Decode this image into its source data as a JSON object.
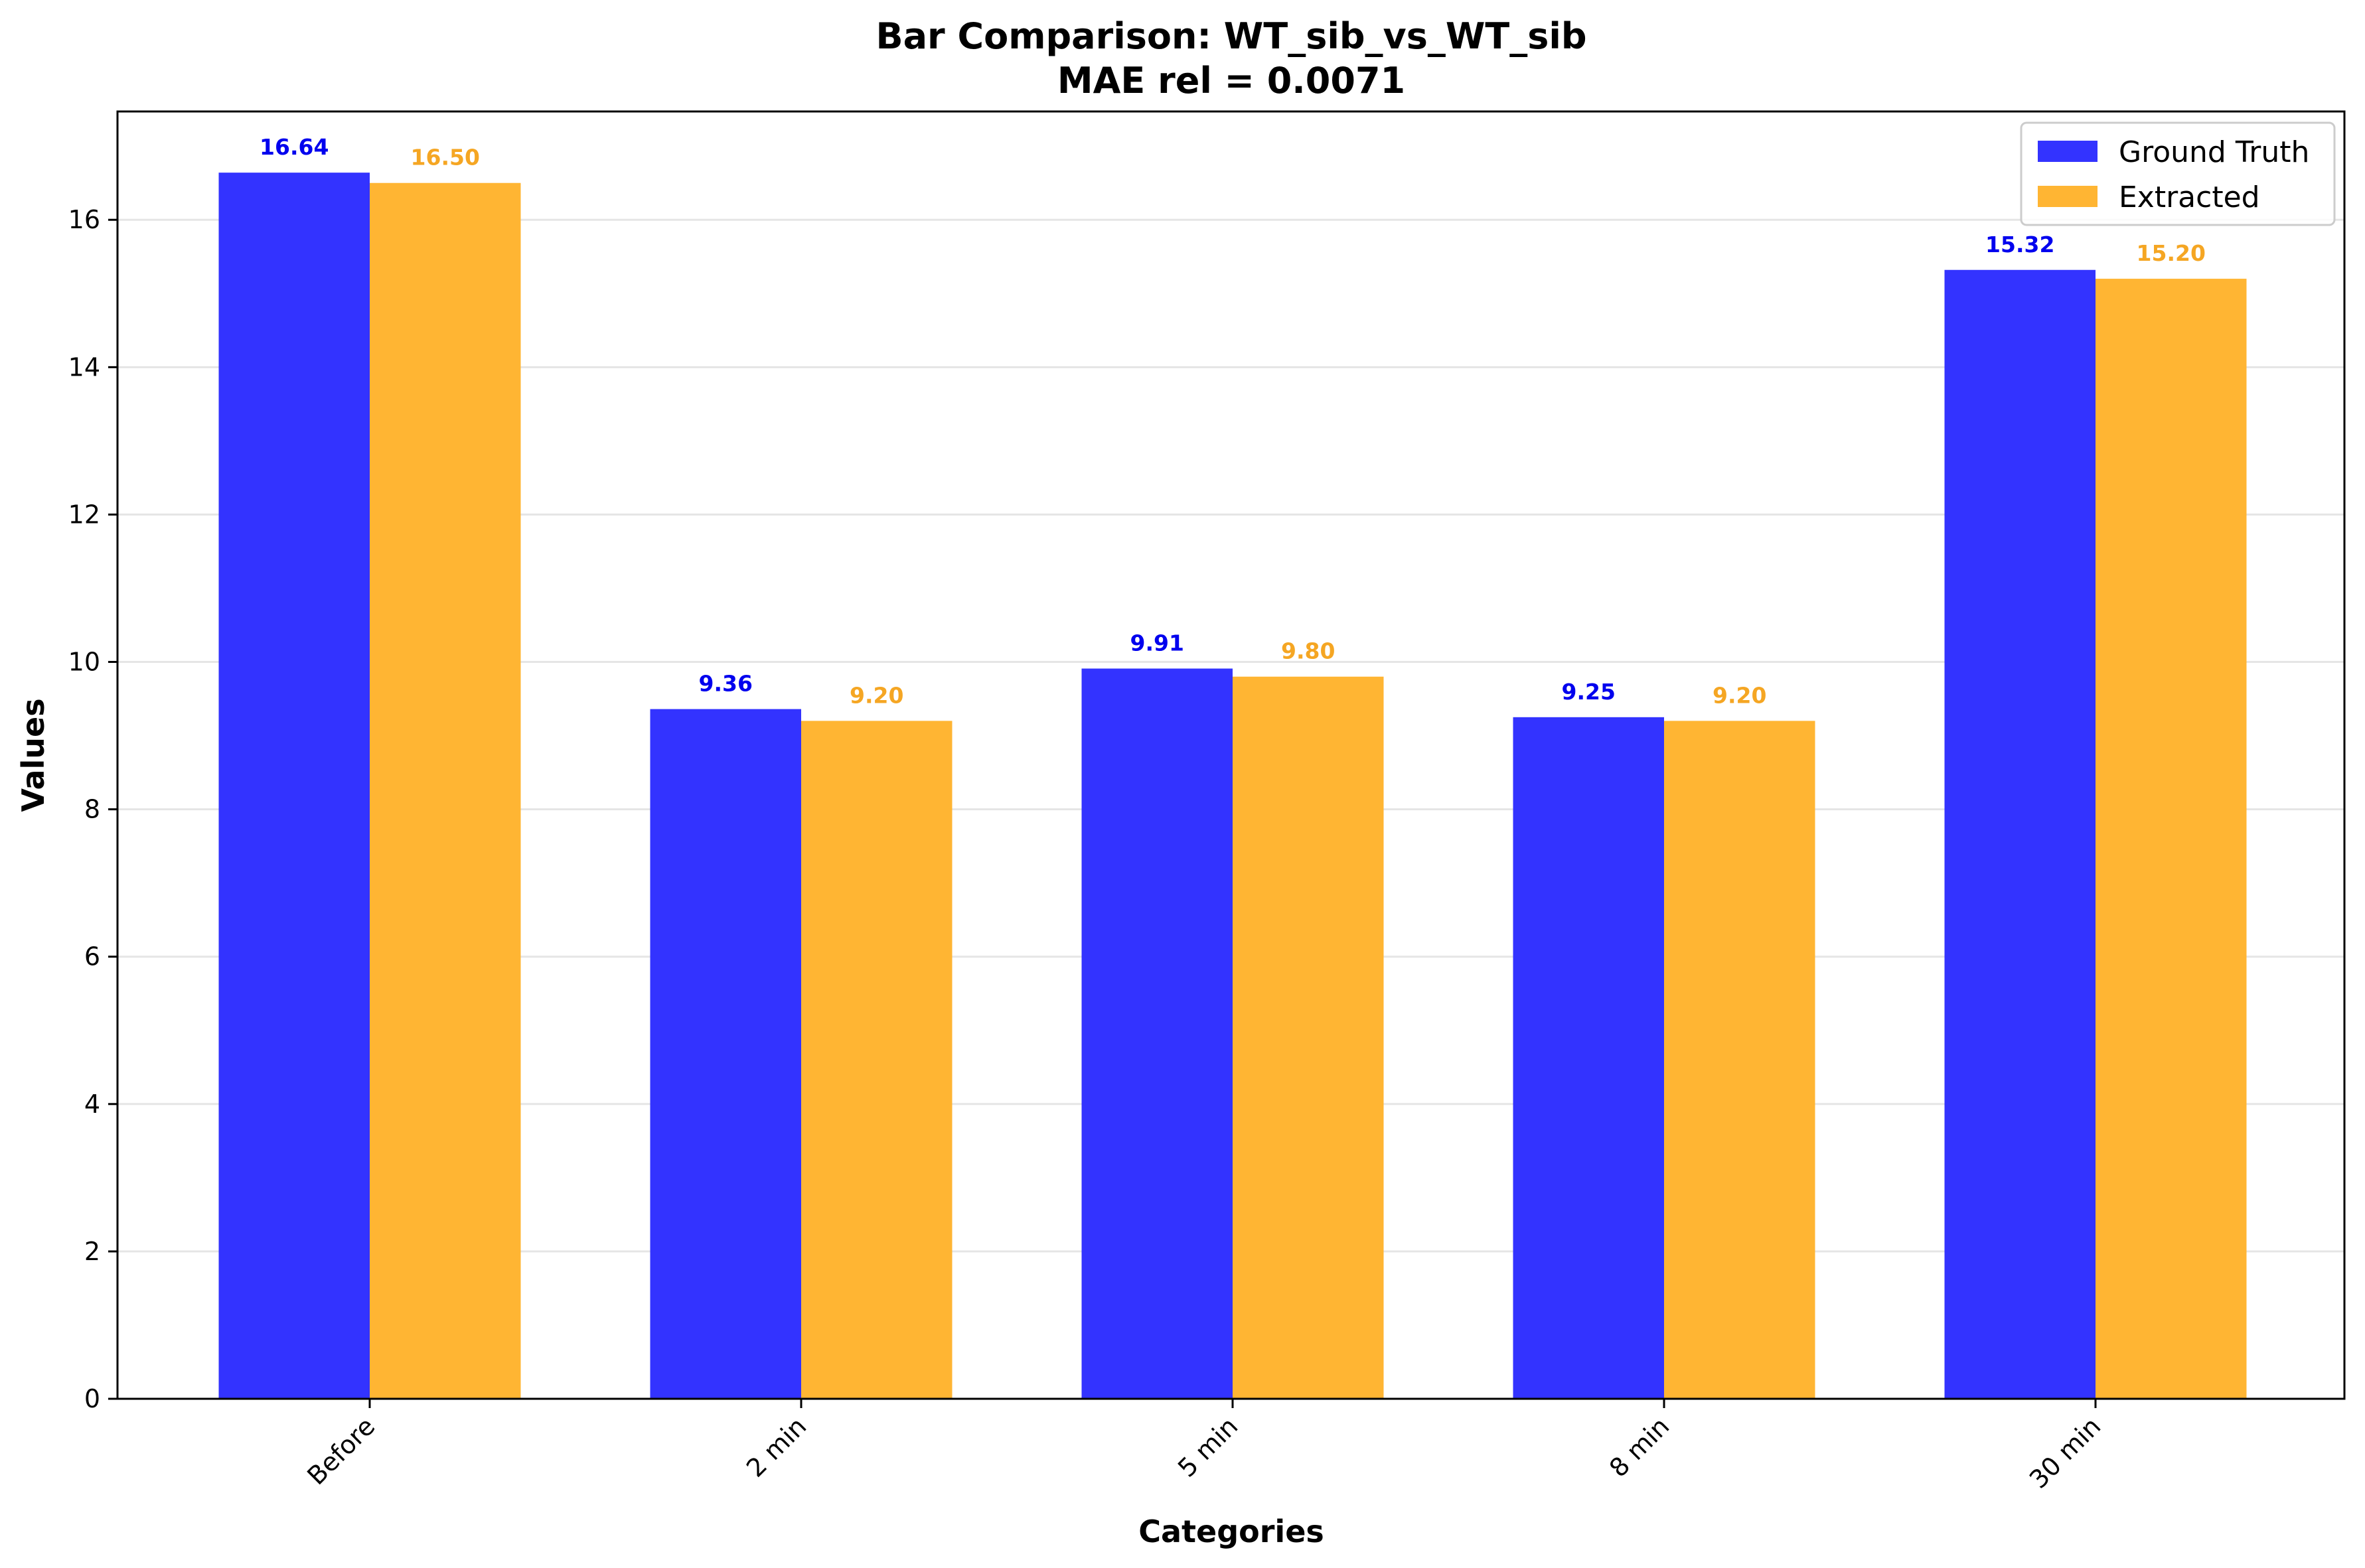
{
  "chart_data": {
    "type": "bar",
    "title": "Bar Comparison: WT_sib_vs_WT_sib",
    "subtitle": "MAE rel = 0.0071",
    "xlabel": "Categories",
    "ylabel": "Values",
    "categories": [
      "Before",
      "2 min",
      "5 min",
      "8 min",
      "30 min"
    ],
    "series": [
      {
        "name": "Ground Truth",
        "values": [
          16.64,
          9.36,
          9.91,
          9.25,
          15.32
        ],
        "labels": [
          "16.64",
          "9.36",
          "9.91",
          "9.25",
          "15.32"
        ],
        "color": "#3333ff",
        "label_color": "#0000ee"
      },
      {
        "name": "Extracted",
        "values": [
          16.5,
          9.2,
          9.8,
          9.2,
          15.2
        ],
        "labels": [
          "16.50",
          "9.20",
          "9.80",
          "9.20",
          "15.20"
        ],
        "color": "#ffb533",
        "label_color": "#f5a623"
      }
    ],
    "ylim": [
      0,
      17.47
    ],
    "yticks": [
      0,
      2,
      4,
      6,
      8,
      10,
      12,
      14,
      16
    ],
    "grid": "y",
    "legend_position": "top-right"
  }
}
